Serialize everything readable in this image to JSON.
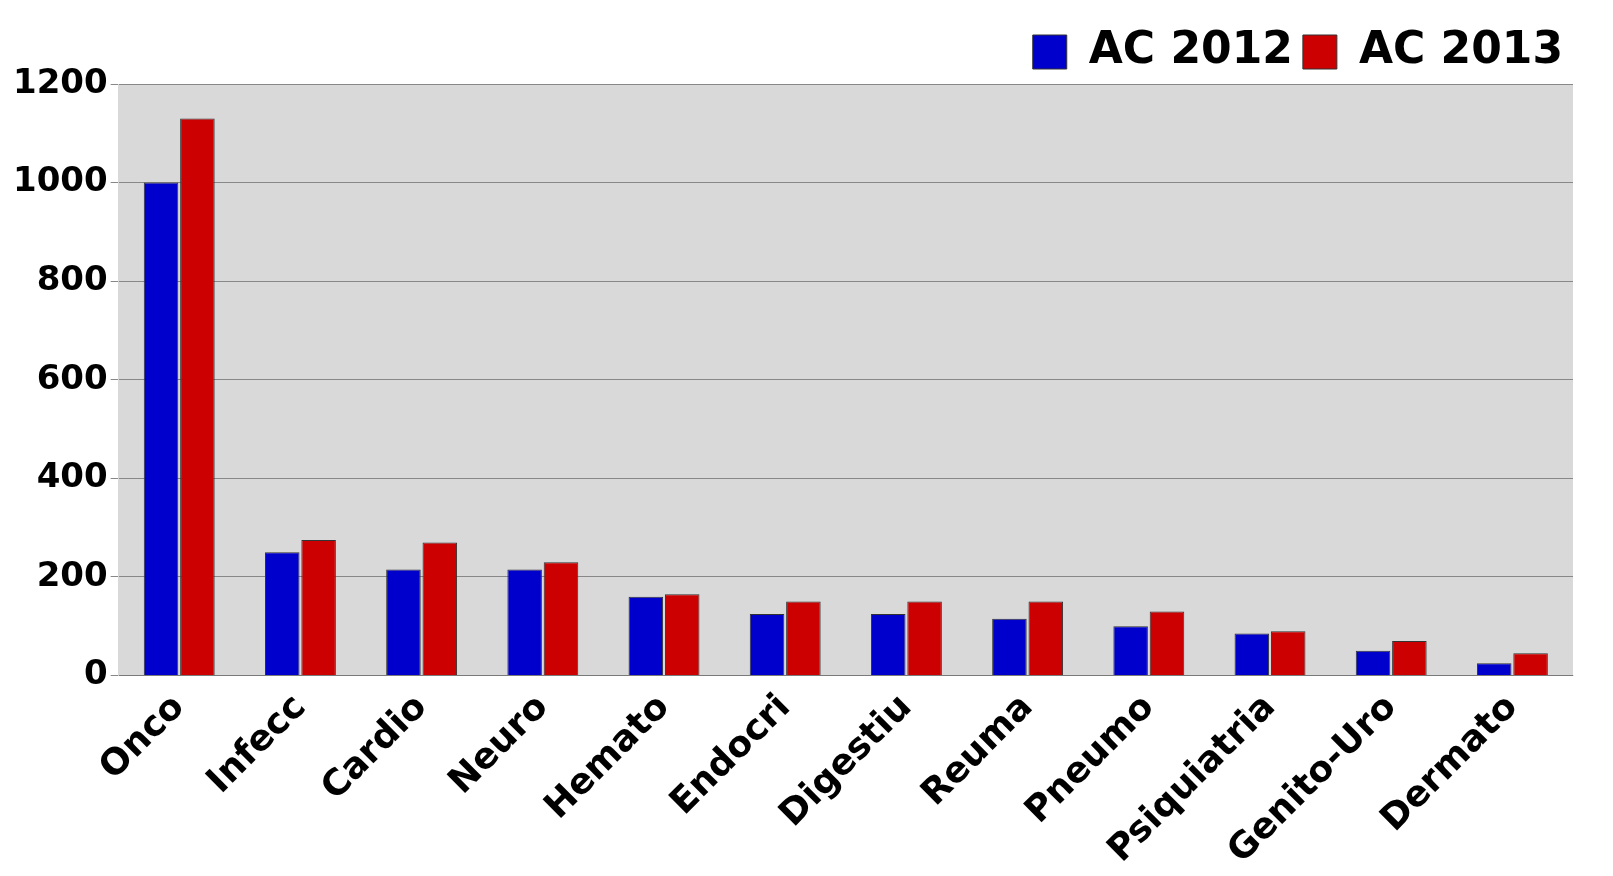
{
  "chart_data": {
    "type": "bar",
    "categories": [
      "Onco",
      "Infecc",
      "Cardio",
      "Neuro",
      "Hemato",
      "Endocri",
      "Digestiu",
      "Reuma",
      "Pneumo",
      "Psiquiatria",
      "Genito-Uro",
      "Dermato"
    ],
    "series": [
      {
        "name": "AC 2012",
        "color": "#0000cc",
        "values": [
          1000,
          250,
          215,
          215,
          160,
          125,
          125,
          115,
          100,
          85,
          50,
          25
        ]
      },
      {
        "name": "AC 2013",
        "color": "#cc0000",
        "values": [
          1130,
          275,
          270,
          230,
          165,
          150,
          150,
          150,
          130,
          90,
          70,
          45
        ]
      }
    ],
    "ylim": [
      0,
      1200
    ],
    "yticks": [
      0,
      200,
      400,
      600,
      800,
      1000,
      1200
    ],
    "grid": "y",
    "legend": "top right"
  }
}
